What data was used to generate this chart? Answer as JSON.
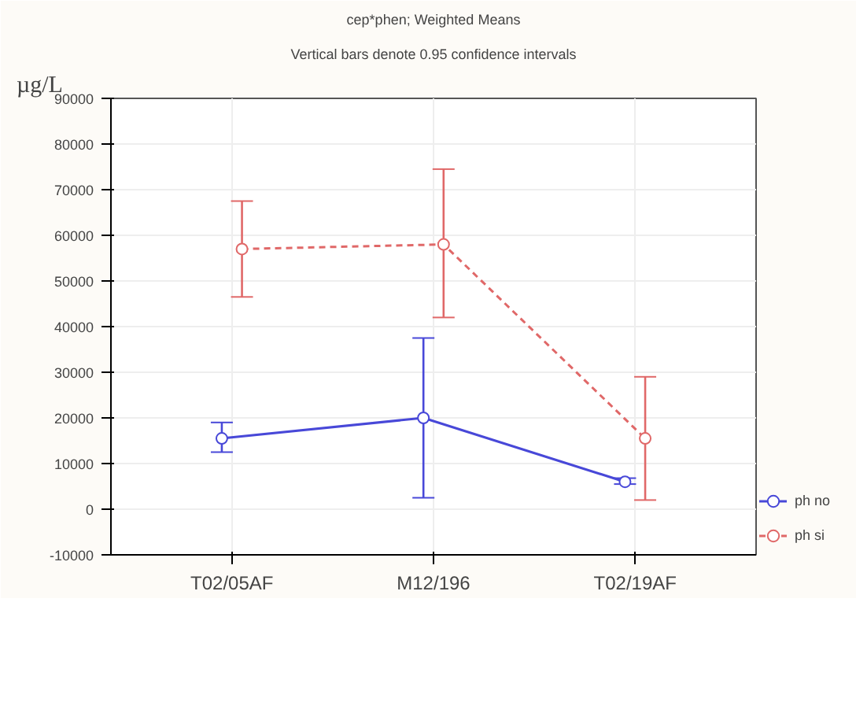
{
  "chart_data": {
    "type": "line",
    "title": "cep*phen; Weighted Means",
    "subtitle": "Vertical bars denote 0.95 confidence intervals",
    "ylabel": "µg/L",
    "categories": [
      "T02/05AF",
      "M12/196",
      "T02/19AF"
    ],
    "series": [
      {
        "name": "ph no",
        "color": "#4848d8",
        "values": [
          15500,
          20000,
          6000
        ],
        "errors": [
          [
            12500,
            19000
          ],
          [
            2500,
            37500
          ],
          [
            5500,
            6800
          ]
        ],
        "line_style": "solid"
      },
      {
        "name": "ph si",
        "color": "#e06868",
        "values": [
          57000,
          58000,
          15500
        ],
        "errors": [
          [
            46500,
            67500
          ],
          [
            42000,
            74500
          ],
          [
            2000,
            29000
          ]
        ],
        "line_style": "dashed"
      }
    ],
    "ylim": [
      -10000,
      90000
    ],
    "yticks": [
      -10000,
      0,
      10000,
      20000,
      30000,
      40000,
      50000,
      60000,
      70000,
      80000,
      90000
    ],
    "grid": true,
    "legend": "bottom right",
    "marker": "circle"
  }
}
